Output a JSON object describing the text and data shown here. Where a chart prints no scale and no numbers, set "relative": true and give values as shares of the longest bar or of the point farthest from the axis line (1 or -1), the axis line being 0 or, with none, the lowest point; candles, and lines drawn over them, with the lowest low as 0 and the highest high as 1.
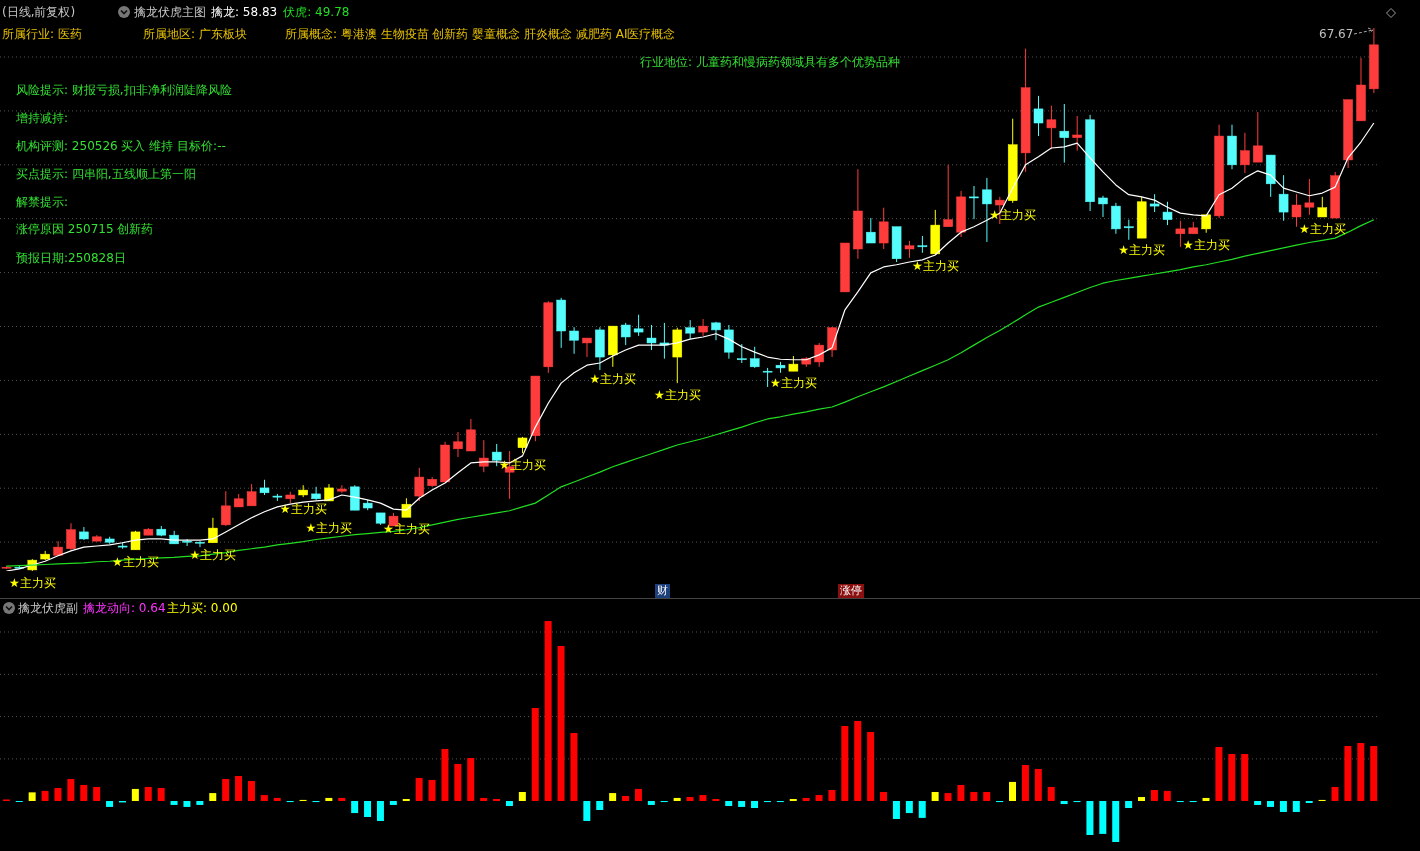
{
  "chart_data": [
    {
      "type": "candlestick",
      "title": "(日线,前复权)",
      "subtitle": "擒龙伏虎主图",
      "relative": true,
      "grid": true,
      "legend": "top left",
      "categories": [
        null,
        null,
        null,
        null,
        null,
        null,
        null,
        null,
        null,
        null,
        null,
        null,
        null,
        null,
        null,
        null,
        null,
        null,
        null,
        null,
        null,
        null,
        null,
        null,
        null,
        null,
        null,
        null,
        null,
        null,
        null,
        null,
        null,
        null,
        null,
        null,
        null,
        null,
        null,
        null,
        null,
        null,
        null,
        null,
        null,
        null,
        null,
        null,
        null,
        null,
        null,
        null,
        null,
        null,
        null,
        null,
        null,
        null,
        null,
        null,
        null,
        null,
        null,
        null,
        null,
        null,
        null,
        null,
        null,
        null,
        null,
        null,
        null,
        null,
        null,
        null,
        null,
        null,
        null,
        null,
        null,
        null,
        null,
        null,
        null,
        null,
        null,
        null,
        null,
        null,
        null,
        null,
        null,
        null,
        null,
        null,
        null,
        null,
        null,
        null,
        null,
        null,
        null,
        null,
        null,
        null,
        null
      ],
      "ohlc": [
        [
          0.006,
          0.009,
          0.004,
          0.007
        ],
        [
          0.007,
          0.009,
          0.004,
          0.006
        ],
        [
          0.002,
          0.022,
          0,
          0.02
        ],
        [
          0.022,
          0.037,
          0.02,
          0.031
        ],
        [
          0.029,
          0.055,
          0.028,
          0.044
        ],
        [
          0.041,
          0.088,
          0.039,
          0.076
        ],
        [
          0.072,
          0.081,
          0.057,
          0.059
        ],
        [
          0.055,
          0.066,
          0.055,
          0.063
        ],
        [
          0.059,
          0.063,
          0.05,
          0.053
        ],
        [
          0.046,
          0.053,
          0.041,
          0.044
        ],
        [
          0.039,
          0.074,
          0.039,
          0.072
        ],
        [
          0.066,
          0.079,
          0.066,
          0.077
        ],
        [
          0.077,
          0.083,
          0.064,
          0.066
        ],
        [
          0.066,
          0.074,
          0.05,
          0.05
        ],
        [
          0.055,
          0.059,
          0.046,
          0.053
        ],
        [
          0.053,
          0.055,
          0.044,
          0.052
        ],
        [
          0.052,
          0.098,
          0.052,
          0.079
        ],
        [
          0.085,
          0.147,
          0.083,
          0.12
        ],
        [
          0.118,
          0.142,
          0.118,
          0.133
        ],
        [
          0.12,
          0.16,
          0.12,
          0.146
        ],
        [
          0.153,
          0.168,
          0.14,
          0.144
        ],
        [
          0.138,
          0.142,
          0.129,
          0.136
        ],
        [
          0.133,
          0.146,
          0.125,
          0.14
        ],
        [
          0.14,
          0.158,
          0.136,
          0.149
        ],
        [
          0.142,
          0.155,
          0.131,
          0.133
        ],
        [
          0.129,
          0.16,
          0.129,
          0.153
        ],
        [
          0.147,
          0.158,
          0.144,
          0.151
        ],
        [
          0.155,
          0.158,
          0.112,
          0.112
        ],
        [
          0.125,
          0.131,
          0.112,
          0.116
        ],
        [
          0.107,
          0.107,
          0.085,
          0.088
        ],
        [
          0.083,
          0.107,
          0.083,
          0.101
        ],
        [
          0.099,
          0.134,
          0.099,
          0.123
        ],
        [
          0.138,
          0.19,
          0.129,
          0.173
        ],
        [
          0.157,
          0.173,
          0.155,
          0.169
        ],
        [
          0.164,
          0.238,
          0.164,
          0.232
        ],
        [
          0.225,
          0.256,
          0.21,
          0.238
        ],
        [
          0.221,
          0.28,
          0.221,
          0.26
        ],
        [
          0.193,
          0.241,
          0.182,
          0.208
        ],
        [
          0.219,
          0.234,
          0.193,
          0.204
        ],
        [
          0.182,
          0.221,
          0.133,
          0.192
        ],
        [
          0.227,
          0.247,
          0.217,
          0.245
        ],
        [
          0.249,
          0.359,
          0.239,
          0.359
        ],
        [
          0.376,
          0.497,
          0.365,
          0.494
        ],
        [
          0.499,
          0.503,
          0.411,
          0.442
        ],
        [
          0.442,
          0.449,
          0.4,
          0.425
        ],
        [
          0.42,
          0.429,
          0.394,
          0.429
        ],
        [
          0.444,
          0.449,
          0.37,
          0.394
        ],
        [
          0.398,
          0.451,
          0.376,
          0.451
        ],
        [
          0.453,
          0.457,
          0.416,
          0.431
        ],
        [
          0.446,
          0.472,
          0.433,
          0.44
        ],
        [
          0.429,
          0.453,
          0.407,
          0.42
        ],
        [
          0.42,
          0.457,
          0.391,
          0.416
        ],
        [
          0.394,
          0.448,
          0.346,
          0.444
        ],
        [
          0.448,
          0.462,
          0.427,
          0.438
        ],
        [
          0.44,
          0.464,
          0.433,
          0.451
        ],
        [
          0.457,
          0.459,
          0.425,
          0.444
        ],
        [
          0.444,
          0.453,
          0.391,
          0.403
        ],
        [
          0.391,
          0.418,
          0.383,
          0.389
        ],
        [
          0.391,
          0.413,
          0.374,
          0.376
        ],
        [
          0.368,
          0.374,
          0.339,
          0.367
        ],
        [
          0.379,
          0.385,
          0.365,
          0.374
        ],
        [
          0.368,
          0.396,
          0.368,
          0.381
        ],
        [
          0.381,
          0.394,
          0.376,
          0.391
        ],
        [
          0.385,
          0.42,
          0.376,
          0.416
        ],
        [
          0.407,
          0.449,
          0.394,
          0.448
        ],
        [
          0.514,
          0.604,
          0.514,
          0.604
        ],
        [
          0.593,
          0.74,
          0.575,
          0.663
        ],
        [
          0.624,
          0.65,
          0.604,
          0.604
        ],
        [
          0.604,
          0.669,
          0.593,
          0.643
        ],
        [
          0.634,
          0.634,
          0.569,
          0.575
        ],
        [
          0.593,
          0.608,
          0.577,
          0.599
        ],
        [
          0.599,
          0.617,
          0.586,
          0.597
        ],
        [
          0.584,
          0.665,
          0.584,
          0.637
        ],
        [
          0.634,
          0.748,
          0.634,
          0.647
        ],
        [
          0.624,
          0.7,
          0.615,
          0.689
        ],
        [
          0.689,
          0.709,
          0.648,
          0.687
        ],
        [
          0.702,
          0.724,
          0.606,
          0.676
        ],
        [
          0.674,
          0.689,
          0.639,
          0.683
        ],
        [
          0.682,
          0.833,
          0.678,
          0.785
        ],
        [
          0.77,
          0.962,
          0.735,
          0.89
        ],
        [
          0.851,
          0.875,
          0.801,
          0.825
        ],
        [
          0.816,
          0.857,
          0.777,
          0.831
        ],
        [
          0.81,
          0.86,
          0.752,
          0.798
        ],
        [
          0.798,
          0.838,
          0.774,
          0.803
        ],
        [
          0.831,
          0.84,
          0.663,
          0.68
        ],
        [
          0.687,
          0.691,
          0.652,
          0.676
        ],
        [
          0.672,
          0.678,
          0.621,
          0.63
        ],
        [
          0.634,
          0.647,
          0.61,
          0.632
        ],
        [
          0.613,
          0.689,
          0.613,
          0.68
        ],
        [
          0.676,
          0.694,
          0.661,
          0.672
        ],
        [
          0.661,
          0.68,
          0.637,
          0.647
        ],
        [
          0.621,
          0.645,
          0.597,
          0.63
        ],
        [
          0.621,
          0.643,
          0.621,
          0.632
        ],
        [
          0.63,
          0.656,
          0.623,
          0.656
        ],
        [
          0.654,
          0.822,
          0.65,
          0.801
        ],
        [
          0.801,
          0.822,
          0.74,
          0.748
        ],
        [
          0.748,
          0.807,
          0.733,
          0.774
        ],
        [
          0.753,
          0.845,
          0.753,
          0.783
        ],
        [
          0.766,
          0.766,
          0.689,
          0.713
        ],
        [
          0.694,
          0.729,
          0.645,
          0.661
        ],
        [
          0.652,
          0.694,
          0.634,
          0.674
        ],
        [
          0.67,
          0.722,
          0.656,
          0.678
        ],
        [
          0.652,
          0.689,
          0.652,
          0.669
        ],
        [
          0.65,
          0.735,
          0.65,
          0.728
        ],
        [
          0.757,
          0.868,
          0.742,
          0.868
        ],
        [
          0.829,
          0.945,
          0.829,
          0.895
        ],
        [
          0.888,
          1,
          0.88,
          0.969
        ]
      ],
      "colors": [
        "#ff3c3c",
        "#54fcfc",
        "#ffff00",
        "#ffff00",
        "#ff3c3c",
        "#ff3c3c",
        "#54fcfc",
        "#ff3c3c",
        "#54fcfc",
        "#54fcfc",
        "#ffff00",
        "#ff3c3c",
        "#54fcfc",
        "#54fcfc",
        "#54fcfc",
        "#54fcfc",
        "#ffff00",
        "#ff3c3c",
        "#ff3c3c",
        "#ff3c3c",
        "#54fcfc",
        "#54fcfc",
        "#ff3c3c",
        "#ffff00",
        "#54fcfc",
        "#ffff00",
        "#ff3c3c",
        "#54fcfc",
        "#54fcfc",
        "#54fcfc",
        "#ff3c3c",
        "#ffff00",
        "#ff3c3c",
        "#ff3c3c",
        "#ff3c3c",
        "#ff3c3c",
        "#ff3c3c",
        "#ff3c3c",
        "#54fcfc",
        "#ff3c3c",
        "#ffff00",
        "#ff3c3c",
        "#ff3c3c",
        "#54fcfc",
        "#54fcfc",
        "#ff3c3c",
        "#54fcfc",
        "#ffff00",
        "#54fcfc",
        "#54fcfc",
        "#54fcfc",
        "#54fcfc",
        "#ffff00",
        "#54fcfc",
        "#ff3c3c",
        "#54fcfc",
        "#54fcfc",
        "#54fcfc",
        "#54fcfc",
        "#54fcfc",
        "#54fcfc",
        "#ffff00",
        "#ff3c3c",
        "#ff3c3c",
        "#ff3c3c",
        "#ff3c3c",
        "#ff3c3c",
        "#54fcfc",
        "#ff3c3c",
        "#54fcfc",
        "#ff3c3c",
        "#54fcfc",
        "#ffff00",
        "#ff3c3c",
        "#ff3c3c",
        "#54fcfc",
        "#54fcfc",
        "#ff3c3c",
        "#ffff00",
        "#ff3c3c",
        "#54fcfc",
        "#ff3c3c",
        "#54fcfc",
        "#ff3c3c",
        "#54fcfc",
        "#54fcfc",
        "#54fcfc",
        "#54fcfc",
        "#ffff00",
        "#54fcfc",
        "#54fcfc",
        "#ff3c3c",
        "#ff3c3c",
        "#ffff00",
        "#ff3c3c",
        "#54fcfc",
        "#ff3c3c",
        "#ff3c3c",
        "#54fcfc",
        "#54fcfc",
        "#ff3c3c",
        "#ff3c3c",
        "#ffff00",
        "#ff3c3c",
        "#ff3c3c",
        "#ff3c3c",
        "#ff3c3c"
      ],
      "value_labels": [
        null,
        null,
        "★主力买",
        null,
        null,
        null,
        null,
        null,
        null,
        null,
        "★主力买",
        null,
        null,
        null,
        null,
        null,
        "★主力买",
        null,
        null,
        null,
        null,
        null,
        null,
        "★主力买",
        null,
        "★主力买",
        null,
        null,
        null,
        null,
        null,
        "★主力买",
        null,
        null,
        null,
        null,
        null,
        null,
        null,
        null,
        "★主力买",
        null,
        null,
        null,
        null,
        null,
        null,
        "★主力买",
        null,
        null,
        null,
        null,
        "★主力买",
        null,
        null,
        null,
        null,
        null,
        null,
        null,
        null,
        "★主力买",
        null,
        null,
        null,
        null,
        null,
        null,
        null,
        null,
        null,
        null,
        "★主力买",
        null,
        null,
        null,
        null,
        null,
        "★主力买",
        null,
        null,
        null,
        null,
        null,
        null,
        null,
        null,
        null,
        "★主力买",
        null,
        null,
        null,
        null,
        "★主力买",
        null,
        null,
        null,
        null,
        null,
        null,
        null,
        null,
        "★主力买",
        null,
        null,
        null,
        null
      ],
      "series": [
        {
          "type": "line",
          "name": "擒龙: 58.83",
          "color": "#ffffff",
          "values": [
            0,
            0.004,
            0.011,
            0.018,
            0.028,
            0.037,
            0.044,
            0.046,
            0.048,
            0.052,
            0.057,
            0.059,
            0.059,
            0.057,
            0.057,
            0.057,
            0.059,
            0.072,
            0.085,
            0.098,
            0.109,
            0.118,
            0.123,
            0.127,
            0.129,
            0.131,
            0.14,
            0.136,
            0.131,
            0.125,
            0.114,
            0.112,
            0.134,
            0.149,
            0.162,
            0.181,
            0.199,
            0.201,
            0.201,
            0.199,
            0.212,
            0.265,
            0.309,
            0.346,
            0.365,
            0.379,
            0.383,
            0.396,
            0.407,
            0.416,
            0.416,
            0.416,
            0.42,
            0.427,
            0.431,
            0.437,
            0.427,
            0.413,
            0.403,
            0.394,
            0.39,
            0.389,
            0.389,
            0.398,
            0.411,
            0.481,
            0.514,
            0.549,
            0.56,
            0.564,
            0.569,
            0.573,
            0.582,
            0.604,
            0.624,
            0.634,
            0.646,
            0.659,
            0.705,
            0.748,
            0.763,
            0.779,
            0.781,
            0.788,
            0.761,
            0.735,
            0.711,
            0.693,
            0.689,
            0.683,
            0.67,
            0.659,
            0.656,
            0.654,
            0.693,
            0.705,
            0.724,
            0.737,
            0.729,
            0.705,
            0.698,
            0.691,
            0.696,
            0.707,
            0.761,
            0.79,
            0.825
          ]
        },
        {
          "type": "line",
          "name": "伏虎: 49.78",
          "color": "#22dd22",
          "values": [
            0.009,
            0.01,
            0.011,
            0.012,
            0.013,
            0.014,
            0.015,
            0.017,
            0.018,
            0.02,
            0.022,
            0.023,
            0.024,
            0.025,
            0.027,
            0.028,
            0.031,
            0.034,
            0.038,
            0.041,
            0.044,
            0.048,
            0.051,
            0.054,
            0.058,
            0.061,
            0.064,
            0.067,
            0.069,
            0.071,
            0.073,
            0.076,
            0.08,
            0.085,
            0.09,
            0.095,
            0.099,
            0.103,
            0.107,
            0.111,
            0.118,
            0.125,
            0.14,
            0.155,
            0.164,
            0.173,
            0.182,
            0.192,
            0.2,
            0.208,
            0.216,
            0.224,
            0.232,
            0.238,
            0.244,
            0.251,
            0.258,
            0.265,
            0.273,
            0.28,
            0.284,
            0.289,
            0.293,
            0.298,
            0.302,
            0.311,
            0.321,
            0.33,
            0.339,
            0.349,
            0.359,
            0.369,
            0.379,
            0.389,
            0.402,
            0.416,
            0.43,
            0.443,
            0.457,
            0.472,
            0.486,
            0.495,
            0.504,
            0.513,
            0.522,
            0.53,
            0.535,
            0.539,
            0.543,
            0.547,
            0.551,
            0.555,
            0.56,
            0.564,
            0.569,
            0.574,
            0.58,
            0.585,
            0.59,
            0.595,
            0.6,
            0.605,
            0.609,
            0.613,
            0.624,
            0.636,
            0.647
          ]
        }
      ],
      "annotations": [
        "所属行业: 医药",
        "所属地区: 广东板块",
        "所属概念: 粤港澳 生物疫苗 创新药 婴童概念 肝炎概念 减肥药 AI医疗概念",
        "行业地位: 儿童药和慢病药领域具有多个优势品种",
        "风险提示: 财报亏损,扣非净利润陡降风险",
        "增持减持:",
        "机构评测: 250526 买入 维持 目标价:--",
        "买点提示: 四串阳,五线顺上第一阳",
        "解禁提示:",
        "涨停原因 250715 创新药",
        "预报日期:250828日",
        "财",
        "涨停",
        "67.67"
      ]
    },
    {
      "type": "bar",
      "title": "擒龙伏虎副",
      "relative": true,
      "grid": true,
      "categories": [
        null,
        null,
        null,
        null,
        null,
        null,
        null,
        null,
        null,
        null,
        null,
        null,
        null,
        null,
        null,
        null,
        null,
        null,
        null,
        null,
        null,
        null,
        null,
        null,
        null,
        null,
        null,
        null,
        null,
        null,
        null,
        null,
        null,
        null,
        null,
        null,
        null,
        null,
        null,
        null,
        null,
        null,
        null,
        null,
        null,
        null,
        null,
        null,
        null,
        null,
        null,
        null,
        null,
        null,
        null,
        null,
        null,
        null,
        null,
        null,
        null,
        null,
        null,
        null,
        null,
        null,
        null,
        null,
        null,
        null,
        null,
        null,
        null,
        null,
        null,
        null,
        null,
        null,
        null,
        null,
        null,
        null,
        null,
        null,
        null,
        null,
        null,
        null,
        null,
        null,
        null,
        null,
        null,
        null,
        null,
        null,
        null,
        null,
        null,
        null,
        null,
        null,
        null,
        null,
        null,
        null,
        null
      ],
      "values": [
        0.008,
        -0.006,
        0.048,
        0.056,
        0.072,
        0.122,
        0.089,
        0.078,
        -0.033,
        -0.008,
        0.067,
        0.078,
        0.072,
        -0.022,
        -0.033,
        -0.022,
        0.044,
        0.122,
        0.139,
        0.111,
        0.033,
        0.017,
        -0.006,
        0.006,
        -0.006,
        0.017,
        0.017,
        -0.067,
        -0.089,
        -0.111,
        -0.022,
        0.011,
        0.128,
        0.117,
        0.289,
        0.206,
        0.239,
        0.017,
        0.011,
        -0.028,
        0.05,
        0.517,
        1,
        0.861,
        0.378,
        -0.111,
        -0.05,
        0.044,
        0.028,
        0.067,
        -0.022,
        -0.006,
        0.017,
        0.022,
        0.033,
        0.011,
        -0.028,
        -0.033,
        -0.039,
        -0.006,
        -0.006,
        0.011,
        0.017,
        0.033,
        0.061,
        0.417,
        0.444,
        0.383,
        0.05,
        -0.1,
        -0.067,
        -0.094,
        0.05,
        0.044,
        0.089,
        0.05,
        0.05,
        -0.006,
        0.106,
        0.2,
        0.178,
        0.078,
        -0.017,
        -0.006,
        -0.189,
        -0.183,
        -0.228,
        -0.039,
        0.022,
        0.061,
        0.056,
        -0.006,
        -0.006,
        0.017,
        0.3,
        0.261,
        0.261,
        -0.022,
        -0.033,
        -0.061,
        -0.061,
        -0.011,
        0.006,
        0.078,
        0.306,
        0.322,
        0.306
      ],
      "colors": [
        "#ff0000",
        "#00ffff",
        "#ffff00",
        "#ff0000",
        "#ff0000",
        "#ff0000",
        "#ff0000",
        "#ff0000",
        "#00ffff",
        "#00ffff",
        "#ffff00",
        "#ff0000",
        "#ff0000",
        "#00ffff",
        "#00ffff",
        "#00ffff",
        "#ffff00",
        "#ff0000",
        "#ff0000",
        "#ff0000",
        "#ff0000",
        "#ff0000",
        "#00ffff",
        "#ffff00",
        "#00ffff",
        "#ffff00",
        "#ff0000",
        "#00ffff",
        "#00ffff",
        "#00ffff",
        "#00ffff",
        "#ffff00",
        "#ff0000",
        "#ff0000",
        "#ff0000",
        "#ff0000",
        "#ff0000",
        "#ff0000",
        "#ff0000",
        "#00ffff",
        "#ffff00",
        "#ff0000",
        "#ff0000",
        "#ff0000",
        "#ff0000",
        "#00ffff",
        "#00ffff",
        "#ffff00",
        "#ff0000",
        "#ff0000",
        "#00ffff",
        "#00ffff",
        "#ffff00",
        "#ff0000",
        "#ff0000",
        "#ff0000",
        "#00ffff",
        "#00ffff",
        "#00ffff",
        "#00ffff",
        "#00ffff",
        "#ffff00",
        "#ff0000",
        "#ff0000",
        "#ff0000",
        "#ff0000",
        "#ff0000",
        "#ff0000",
        "#ff0000",
        "#00ffff",
        "#00ffff",
        "#00ffff",
        "#ffff00",
        "#ff0000",
        "#ff0000",
        "#ff0000",
        "#ff0000",
        "#00ffff",
        "#ffff00",
        "#ff0000",
        "#ff0000",
        "#ff0000",
        "#00ffff",
        "#00ffff",
        "#00ffff",
        "#00ffff",
        "#00ffff",
        "#00ffff",
        "#ffff00",
        "#ff0000",
        "#ff0000",
        "#00ffff",
        "#00ffff",
        "#ffff00",
        "#ff0000",
        "#ff0000",
        "#ff0000",
        "#00ffff",
        "#00ffff",
        "#00ffff",
        "#00ffff",
        "#00ffff",
        "#ffff00",
        "#ff0000",
        "#ff0000",
        "#ff0000",
        "#ff0000"
      ],
      "annotations": [
        "擒龙动向: 0.64",
        "主力买: 0.00"
      ]
    }
  ]
}
